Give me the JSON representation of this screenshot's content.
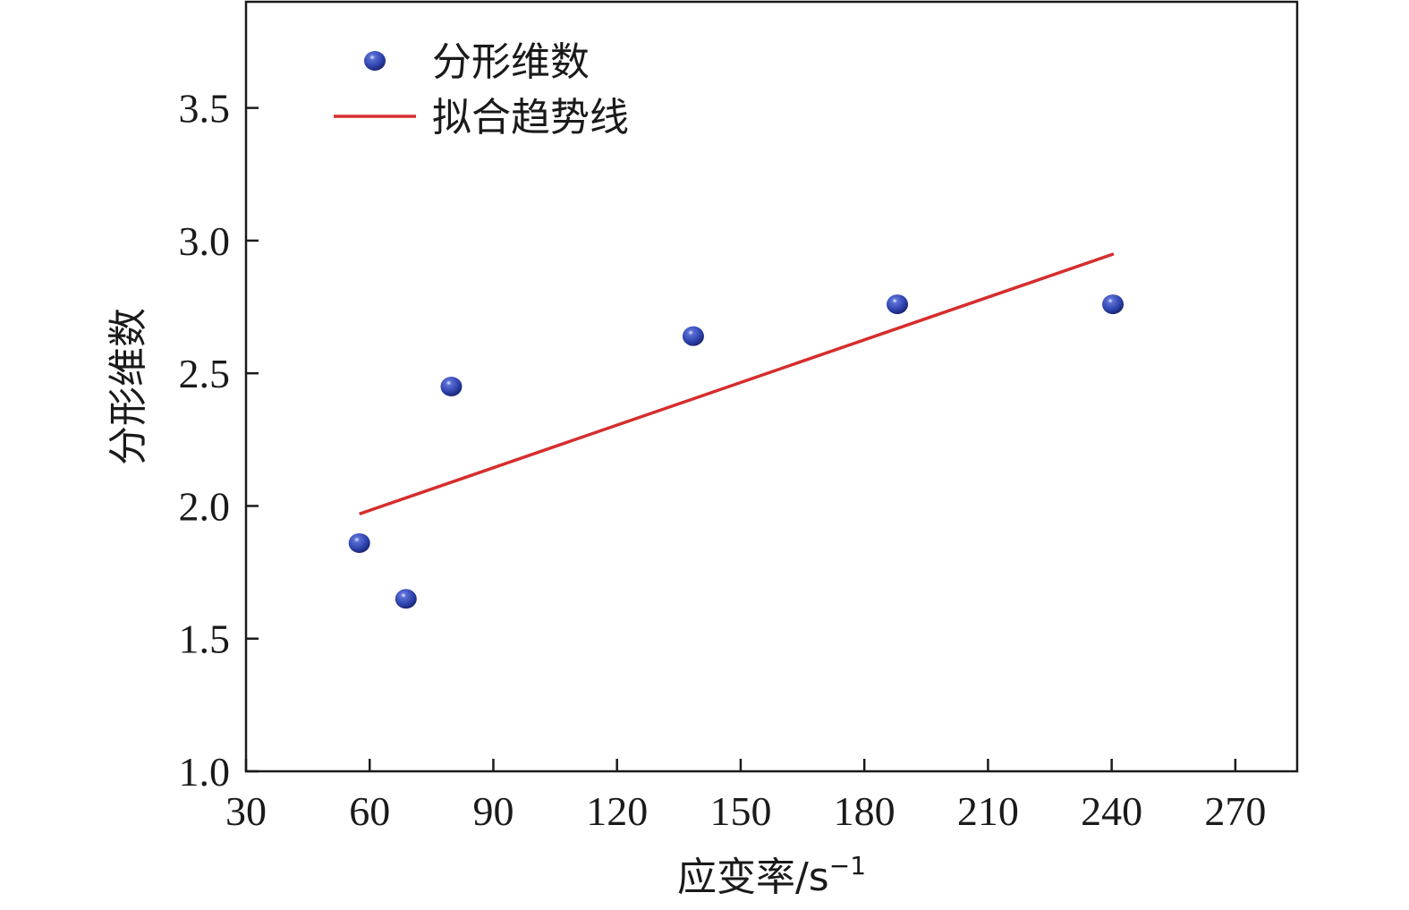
{
  "chart_data": {
    "type": "scatter",
    "xlabel": "应变率/s",
    "xlabel_sup": "−1",
    "ylabel": "分形维数",
    "xlim": [
      30,
      285
    ],
    "ylim": [
      1.0,
      3.9
    ],
    "xticks": [
      30,
      60,
      90,
      120,
      150,
      180,
      210,
      240,
      270
    ],
    "xtick_labels": [
      "30",
      "60",
      "90",
      "120",
      "150",
      "180",
      "210",
      "240",
      "270"
    ],
    "yticks": [
      1.0,
      1.5,
      2.0,
      2.5,
      3.0,
      3.5
    ],
    "ytick_labels": [
      "1.0",
      "1.5",
      "2.0",
      "2.5",
      "3.0",
      "3.5"
    ],
    "grid": false,
    "legend_position": "top-left",
    "series": [
      {
        "name": "分形维数",
        "kind": "scatter",
        "color": "#2b3fa8",
        "points": [
          {
            "x": 57.5,
            "y": 1.86
          },
          {
            "x": 68.8,
            "y": 1.65
          },
          {
            "x": 79.8,
            "y": 2.45
          },
          {
            "x": 138.5,
            "y": 2.64
          },
          {
            "x": 188,
            "y": 2.76
          },
          {
            "x": 240.3,
            "y": 2.76
          }
        ]
      },
      {
        "name": "拟合趋势线",
        "kind": "line",
        "color": "#d62d2d",
        "points": [
          {
            "x": 57.5,
            "y": 1.97
          },
          {
            "x": 240.5,
            "y": 2.95
          }
        ]
      }
    ]
  }
}
